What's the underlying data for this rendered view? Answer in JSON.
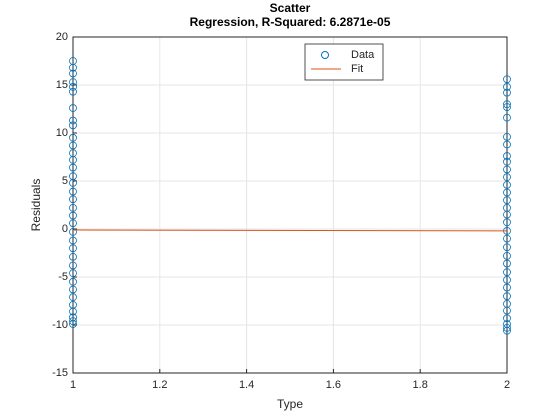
{
  "chart_data": {
    "type": "scatter",
    "title": "Scatter",
    "subtitle": "Regression, R-Squared: 6.2871e-05",
    "x_label": "Type",
    "y_label": "Residuals",
    "xlim": [
      1,
      2
    ],
    "xticks": [
      1,
      1.2,
      1.4,
      1.6,
      1.8,
      2
    ],
    "ylim": [
      -15,
      20
    ],
    "yticks": [
      -15,
      -10,
      -5,
      0,
      5,
      10,
      15,
      20
    ],
    "grid": true,
    "legend": "north",
    "series": [
      {
        "name": "Data",
        "color": "#0072BD",
        "style": "markers",
        "x": [
          1,
          1,
          1,
          1,
          1,
          1,
          1,
          1,
          1,
          1,
          1,
          1,
          1,
          1,
          1,
          1,
          1,
          1,
          1,
          1,
          1,
          1,
          1,
          1,
          1,
          1,
          1,
          1,
          1,
          1,
          1,
          1,
          1,
          1,
          1,
          2,
          2,
          2,
          2,
          2,
          2,
          2,
          2,
          2,
          2,
          2,
          2,
          2,
          2,
          2,
          2,
          2,
          2,
          2,
          2,
          2,
          2,
          2,
          2,
          2,
          2,
          2,
          2,
          2,
          2,
          2,
          2,
          2
        ],
        "values": [
          17.5,
          16.8,
          16.2,
          15.3,
          14.8,
          14.3,
          12.6,
          11.3,
          10.8,
          9.5,
          8.7,
          7.9,
          7.2,
          6.4,
          5.5,
          4.8,
          3.9,
          3.1,
          2.2,
          1.4,
          0.6,
          -0.3,
          -1.2,
          -2.0,
          -2.9,
          -3.8,
          -4.6,
          -5.5,
          -6.3,
          -7.1,
          -7.9,
          -8.6,
          -9.2,
          -9.6,
          -9.9,
          15.6,
          14.8,
          14.2,
          13.0,
          12.7,
          11.6,
          9.6,
          8.8,
          7.6,
          7.0,
          6.2,
          5.4,
          4.6,
          3.8,
          3.0,
          2.2,
          1.5,
          0.7,
          -0.2,
          -1.0,
          -1.9,
          -2.8,
          -3.6,
          -4.5,
          -5.3,
          -6.1,
          -7.0,
          -7.8,
          -8.5,
          -9.3,
          -9.9,
          -10.3,
          -10.6
        ]
      },
      {
        "name": "Fit",
        "color": "#D95319",
        "style": "line",
        "x": [
          1,
          2
        ],
        "values": [
          -0.1,
          -0.2
        ]
      }
    ]
  }
}
